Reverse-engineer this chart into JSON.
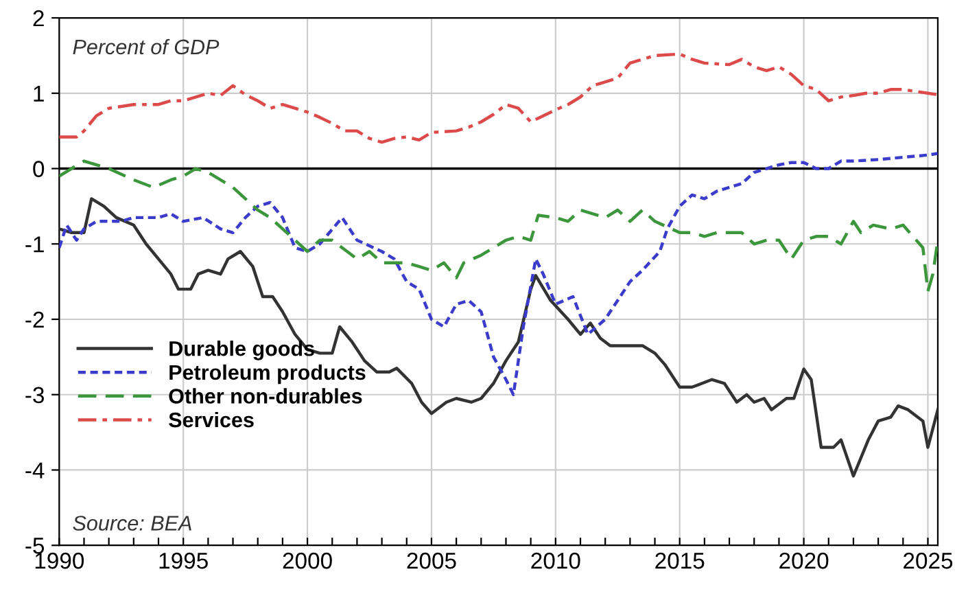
{
  "chart_data": {
    "type": "line",
    "annotations": [
      "Percent of GDP",
      "Source: BEA"
    ],
    "xlim": [
      1990,
      2025.4
    ],
    "ylim": [
      -5,
      2
    ],
    "xticks": [
      1990,
      {
        "value": 1991,
        "label": null
      },
      {
        "value": 1992,
        "label": null
      },
      {
        "value": 1993,
        "label": null
      },
      {
        "value": 1994,
        "label": null
      },
      1995,
      {
        "value": 1996,
        "label": null
      },
      {
        "value": 1997,
        "label": null
      },
      {
        "value": 1998,
        "label": null
      },
      {
        "value": 1999,
        "label": null
      },
      2000,
      {
        "value": 2001,
        "label": null
      },
      {
        "value": 2002,
        "label": null
      },
      {
        "value": 2003,
        "label": null
      },
      {
        "value": 2004,
        "label": null
      },
      2005,
      {
        "value": 2006,
        "label": null
      },
      {
        "value": 2007,
        "label": null
      },
      {
        "value": 2008,
        "label": null
      },
      {
        "value": 2009,
        "label": null
      },
      2010,
      {
        "value": 2011,
        "label": null
      },
      {
        "value": 2012,
        "label": null
      },
      {
        "value": 2013,
        "label": null
      },
      {
        "value": 2014,
        "label": null
      },
      2015,
      {
        "value": 2016,
        "label": null
      },
      {
        "value": 2017,
        "label": null
      },
      {
        "value": 2018,
        "label": null
      },
      {
        "value": 2019,
        "label": null
      },
      2020,
      {
        "value": 2021,
        "label": null
      },
      {
        "value": 2022,
        "label": null
      },
      {
        "value": 2023,
        "label": null
      },
      {
        "value": 2024,
        "label": null
      },
      2025
    ],
    "yticks": [
      -5,
      -4,
      -3,
      -2,
      -1,
      0,
      1,
      2
    ],
    "grid": true,
    "legend": "bottom left",
    "marker": "none",
    "ref_lines": [
      {
        "axis": "y",
        "value": 0,
        "label": null,
        "color": "#000000",
        "line_style": "solid"
      }
    ],
    "series": [
      {
        "name": "Durable goods",
        "color": "#333333",
        "line_style": "solid",
        "x": [
          1990,
          1990.5,
          1991,
          1991.3,
          1991.8,
          1992.3,
          1993,
          1993.5,
          1994,
          1994.5,
          1994.8,
          1995.3,
          1995.6,
          1996,
          1996.5,
          1996.8,
          1997.3,
          1997.8,
          1998.2,
          1998.6,
          1999,
          1999.5,
          2000,
          2000.5,
          2001,
          2001.3,
          2001.8,
          2002.3,
          2002.8,
          2003.3,
          2003.6,
          2004.2,
          2004.6,
          2005,
          2005.6,
          2006,
          2006.6,
          2007,
          2007.5,
          2008,
          2008.5,
          2009,
          2009.2,
          2009.8,
          2010.5,
          2011,
          2011.4,
          2011.8,
          2012.2,
          2013,
          2013.5,
          2014,
          2014.4,
          2015,
          2015.5,
          2016.3,
          2016.8,
          2017.3,
          2017.7,
          2018,
          2018.4,
          2018.7,
          2019.3,
          2019.6,
          2020,
          2020.3,
          2020.7,
          2021.2,
          2021.5,
          2022,
          2022.6,
          2023,
          2023.5,
          2023.8,
          2024.2,
          2024.8,
          2025,
          2025.4
        ],
        "values": [
          -0.8,
          -0.85,
          -0.85,
          -0.4,
          -0.5,
          -0.65,
          -0.75,
          -1.0,
          -1.2,
          -1.4,
          -1.6,
          -1.6,
          -1.4,
          -1.35,
          -1.4,
          -1.2,
          -1.1,
          -1.3,
          -1.7,
          -1.7,
          -1.9,
          -2.2,
          -2.4,
          -2.45,
          -2.45,
          -2.1,
          -2.3,
          -2.55,
          -2.7,
          -2.7,
          -2.65,
          -2.85,
          -3.1,
          -3.25,
          -3.1,
          -3.05,
          -3.1,
          -3.05,
          -2.85,
          -2.55,
          -2.3,
          -1.6,
          -1.42,
          -1.75,
          -2.0,
          -2.2,
          -2.05,
          -2.25,
          -2.35,
          -2.35,
          -2.35,
          -2.45,
          -2.6,
          -2.9,
          -2.9,
          -2.8,
          -2.85,
          -3.1,
          -3.0,
          -3.1,
          -3.05,
          -3.2,
          -3.05,
          -3.05,
          -2.66,
          -2.8,
          -3.7,
          -3.7,
          -3.6,
          -4.08,
          -3.6,
          -3.35,
          -3.3,
          -3.15,
          -3.2,
          -3.35,
          -3.7,
          -3.2
        ]
      },
      {
        "name": "Petroleum products",
        "color": "#3c3ccc",
        "line_style": "dotted",
        "x": [
          1990,
          1990.3,
          1990.7,
          1991,
          1991.5,
          1992.5,
          1993,
          1994,
          1994.5,
          1995,
          1995.8,
          1996.5,
          1997,
          1997.5,
          1998,
          1998.5,
          1999,
          1999.5,
          2000,
          2000.5,
          2001.4,
          2002,
          2003,
          2003.5,
          2004,
          2004.5,
          2005,
          2005.5,
          2006,
          2006.5,
          2007,
          2007.5,
          2008,
          2008.3,
          2008.7,
          2009.2,
          2009.5,
          2010,
          2010.7,
          2011.3,
          2012,
          2013,
          2013.5,
          2014.2,
          2014.5,
          2015,
          2015.5,
          2016,
          2016.5,
          2017,
          2017.5,
          2018,
          2018.5,
          2019,
          2019.5,
          2020,
          2020.5,
          2021,
          2021.5,
          2022,
          2023,
          2024,
          2025,
          2025.4
        ],
        "values": [
          -1.05,
          -0.75,
          -0.95,
          -0.8,
          -0.7,
          -0.7,
          -0.65,
          -0.65,
          -0.6,
          -0.7,
          -0.65,
          -0.8,
          -0.85,
          -0.65,
          -0.5,
          -0.45,
          -0.65,
          -1.05,
          -1.1,
          -1.0,
          -0.65,
          -0.95,
          -1.1,
          -1.2,
          -1.5,
          -1.6,
          -2.0,
          -2.1,
          -1.8,
          -1.75,
          -1.9,
          -2.5,
          -2.8,
          -3.0,
          -2.1,
          -1.2,
          -1.4,
          -1.8,
          -1.7,
          -2.2,
          -2.0,
          -1.5,
          -1.35,
          -1.1,
          -0.8,
          -0.5,
          -0.35,
          -0.4,
          -0.3,
          -0.25,
          -0.2,
          -0.05,
          0.0,
          0.05,
          0.08,
          0.08,
          0.0,
          0.0,
          0.1,
          0.1,
          0.12,
          0.15,
          0.18,
          0.2
        ]
      },
      {
        "name": "Other non-durables",
        "color": "#3c963c",
        "line_style": "dashed",
        "x": [
          1990,
          1990.5,
          1991,
          1992,
          1993,
          1993.8,
          1994.5,
          1995,
          1995.5,
          1996,
          1997,
          1998,
          1998.5,
          1999,
          2000,
          2000.5,
          2001,
          2002,
          2002.5,
          2003,
          2004,
          2004.5,
          2005,
          2005.5,
          2006,
          2006.3,
          2007,
          2008,
          2008.5,
          2009,
          2009.3,
          2010,
          2010.5,
          2011,
          2012,
          2012.5,
          2013,
          2013.5,
          2014,
          2015,
          2015.5,
          2016,
          2016.5,
          2017,
          2017.5,
          2018,
          2018.5,
          2019,
          2019.5,
          2020,
          2020.5,
          2021,
          2021.5,
          2022,
          2022.3,
          2022.8,
          2023.5,
          2024,
          2024.8,
          2025,
          2025.2,
          2025.4
        ],
        "values": [
          -0.1,
          0.0,
          0.1,
          0.0,
          -0.15,
          -0.25,
          -0.15,
          -0.1,
          0.0,
          -0.05,
          -0.25,
          -0.55,
          -0.65,
          -0.8,
          -1.1,
          -0.95,
          -0.95,
          -1.2,
          -1.1,
          -1.25,
          -1.25,
          -1.3,
          -1.35,
          -1.25,
          -1.45,
          -1.25,
          -1.15,
          -0.95,
          -0.9,
          -0.95,
          -0.62,
          -0.65,
          -0.7,
          -0.55,
          -0.65,
          -0.55,
          -0.7,
          -0.55,
          -0.7,
          -0.85,
          -0.85,
          -0.9,
          -0.85,
          -0.85,
          -0.85,
          -1.0,
          -0.95,
          -0.95,
          -1.2,
          -0.95,
          -0.9,
          -0.9,
          -1.0,
          -0.7,
          -0.85,
          -0.75,
          -0.8,
          -0.75,
          -1.05,
          -1.63,
          -1.4,
          -0.95
        ]
      },
      {
        "name": "Services",
        "color": "#dd4a4a",
        "line_style": "dashdot",
        "x": [
          1990,
          1990.7,
          1991,
          1991.5,
          1992,
          1993,
          1994,
          1994.5,
          1995,
          1995.5,
          1996,
          1996.5,
          1997,
          1997.5,
          1998,
          1998.5,
          1999,
          2000,
          2000.5,
          2001,
          2001.5,
          2002,
          2002.5,
          2003,
          2003.5,
          2004,
          2004.5,
          2005,
          2006,
          2006.5,
          2007,
          2007.5,
          2008,
          2008.5,
          2009,
          2009.5,
          2010,
          2010.5,
          2011,
          2011.5,
          2012,
          2012.5,
          2013,
          2014,
          2015,
          2015.5,
          2016,
          2017,
          2017.5,
          2018,
          2018.5,
          2019,
          2019.5,
          2020,
          2020.5,
          2021,
          2021.5,
          2022,
          2022.5,
          2023,
          2023.5,
          2024,
          2025,
          2025.4
        ],
        "values": [
          0.42,
          0.42,
          0.5,
          0.7,
          0.8,
          0.85,
          0.85,
          0.9,
          0.9,
          0.95,
          1.0,
          0.97,
          1.1,
          0.98,
          0.9,
          0.8,
          0.85,
          0.75,
          0.68,
          0.6,
          0.5,
          0.5,
          0.4,
          0.35,
          0.4,
          0.42,
          0.38,
          0.48,
          0.5,
          0.55,
          0.62,
          0.72,
          0.85,
          0.8,
          0.62,
          0.7,
          0.78,
          0.85,
          0.95,
          1.1,
          1.15,
          1.2,
          1.4,
          1.5,
          1.52,
          1.45,
          1.4,
          1.38,
          1.45,
          1.35,
          1.3,
          1.35,
          1.25,
          1.1,
          1.05,
          0.9,
          0.95,
          0.97,
          1.0,
          1.0,
          1.05,
          1.05,
          1.0,
          0.98
        ]
      }
    ]
  }
}
